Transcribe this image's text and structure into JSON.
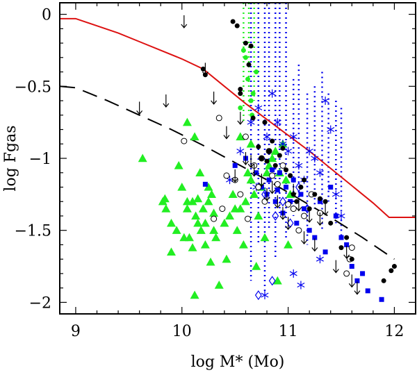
{
  "chart_data": {
    "type": "scatter",
    "xlabel": "log M* (Mo)",
    "ylabel": "log Fgas",
    "xlim": [
      8.85,
      12.2
    ],
    "ylim": [
      -2.08,
      0.08
    ],
    "x_ticks": [
      9,
      10,
      11,
      12
    ],
    "x_tick_labels": [
      "9",
      "10",
      "11",
      "12"
    ],
    "y_ticks": [
      0,
      -0.5,
      -1,
      -1.5,
      -2
    ],
    "y_tick_labels": [
      "0",
      "−0.5",
      "−1",
      "−1.5",
      "−2"
    ],
    "colors": {
      "red_curve": "#dd1111",
      "green": "#22ee22",
      "blue": "#0000ee",
      "black": "#000000"
    },
    "red_curve": {
      "x": [
        8.85,
        9.0,
        9.2,
        9.4,
        9.6,
        9.8,
        10.0,
        10.2,
        10.4,
        10.6,
        10.8,
        11.0,
        11.2,
        11.4,
        11.6,
        11.8,
        11.95,
        12.2
      ],
      "y": [
        -0.03,
        -0.03,
        -0.08,
        -0.13,
        -0.19,
        -0.25,
        -0.31,
        -0.38,
        -0.5,
        -0.62,
        -0.73,
        -0.84,
        -0.95,
        -1.07,
        -1.19,
        -1.31,
        -1.41,
        -1.41
      ]
    },
    "dashed_curve": {
      "x": [
        8.85,
        9.0,
        9.3,
        9.6,
        9.9,
        10.2,
        10.5,
        10.8,
        11.1,
        11.4,
        11.7,
        12.0
      ],
      "y": [
        -0.5,
        -0.51,
        -0.6,
        -0.7,
        -0.8,
        -0.91,
        -1.03,
        -1.15,
        -1.28,
        -1.41,
        -1.55,
        -1.7
      ]
    },
    "green_triangles": {
      "x": [
        9.63,
        9.82,
        9.84,
        9.9,
        9.97,
        10.0,
        10.05,
        10.07,
        10.1,
        10.13,
        10.15,
        10.17,
        10.2,
        10.22,
        10.25,
        10.28,
        10.3,
        10.05,
        10.12,
        10.18,
        10.22,
        10.27,
        10.32,
        10.4,
        10.45,
        10.48,
        10.52,
        10.55,
        10.6,
        10.62,
        10.65,
        10.68,
        10.72,
        10.75,
        10.8,
        10.85,
        10.88,
        10.92,
        10.95,
        10.98,
        11.02,
        10.12,
        10.35,
        10.42,
        10.58,
        10.7,
        10.78,
        10.9,
        11.0,
        10.05,
        10.15,
        10.3,
        10.5,
        10.55,
        10.65,
        10.82,
        9.95,
        10.02,
        10.1,
        9.85,
        9.9,
        10.25
      ],
      "y": [
        -1.0,
        -1.3,
        -1.28,
        -1.65,
        -1.05,
        -1.2,
        -1.35,
        -1.55,
        -1.62,
        -1.4,
        -1.28,
        -1.1,
        -1.35,
        -1.45,
        -1.3,
        -1.25,
        -1.38,
        -0.75,
        -0.85,
        -1.5,
        -1.6,
        -1.72,
        -1.55,
        -1.45,
        -1.4,
        -1.25,
        -1.5,
        -1.35,
        -1.3,
        -1.1,
        -1.15,
        -1.25,
        -1.4,
        -1.2,
        -1.1,
        -1.0,
        -0.95,
        -1.1,
        -0.9,
        -1.15,
        -1.25,
        -1.95,
        -1.88,
        -1.7,
        -1.6,
        -1.75,
        -1.55,
        -1.85,
        -1.6,
        -1.3,
        -1.45,
        -1.5,
        -1.35,
        -0.85,
        -0.9,
        -1.05,
        -1.5,
        -1.55,
        -1.3,
        -1.35,
        -1.45,
        -1.2
      ]
    },
    "green_dots": {
      "x": [
        10.6,
        10.62,
        10.65,
        10.66,
        10.67,
        10.7,
        10.55,
        10.58
      ],
      "y": [
        -0.3,
        -0.45,
        -0.6,
        -0.7,
        -0.55,
        -0.4,
        -0.65,
        -0.25
      ]
    },
    "black_dots": {
      "x": [
        10.48,
        10.52,
        10.55,
        10.6,
        10.63,
        10.67,
        10.72,
        10.75,
        10.78,
        10.82,
        10.85,
        10.88,
        10.92,
        10.95,
        10.98,
        11.02,
        11.05,
        11.08,
        11.12,
        11.15,
        11.2,
        11.25,
        11.3,
        11.35,
        11.4,
        11.5,
        11.55,
        11.6,
        11.97,
        12.0,
        11.9,
        10.2,
        10.22,
        10.55,
        10.65,
        10.8
      ],
      "y": [
        -0.05,
        -0.08,
        -0.52,
        -0.2,
        -0.35,
        -0.72,
        -0.92,
        -1.0,
        -0.75,
        -0.95,
        -0.88,
        -1.05,
        -0.98,
        -0.93,
        -1.08,
        -1.12,
        -1.25,
        -1.3,
        -1.2,
        -1.15,
        -1.35,
        -1.25,
        -1.28,
        -1.3,
        -1.45,
        -1.62,
        -1.55,
        -1.7,
        -1.78,
        -1.75,
        -1.85,
        -0.38,
        -0.42,
        -0.55,
        -0.22,
        -1.02
      ]
    },
    "open_circles": {
      "x": [
        10.02,
        10.3,
        10.35,
        10.38,
        10.42,
        10.5,
        10.55,
        10.6,
        10.62,
        10.68,
        10.72,
        10.75,
        10.78,
        10.82,
        10.85,
        10.9,
        10.95,
        11.0,
        11.05,
        11.1,
        11.15,
        11.22,
        11.3,
        11.55,
        11.58,
        11.6
      ],
      "y": [
        -0.88,
        -1.42,
        -0.72,
        -1.35,
        -1.12,
        -1.15,
        -1.25,
        -0.85,
        -1.42,
        -1.05,
        -1.2,
        -1.0,
        -1.3,
        -0.95,
        -1.12,
        -1.18,
        -1.05,
        -1.32,
        -1.35,
        -1.5,
        -1.4,
        -1.25,
        -1.38,
        -1.8,
        -1.7,
        -1.62
      ]
    },
    "blue_squares": {
      "x": [
        10.22,
        10.5,
        10.6,
        10.7,
        10.75,
        10.8,
        10.82,
        10.85,
        10.88,
        10.9,
        10.92,
        10.95,
        10.98,
        11.02,
        11.05,
        11.08,
        11.12,
        11.15,
        11.2,
        11.25,
        11.3,
        11.35,
        11.4,
        11.45,
        11.5,
        11.55,
        11.6,
        11.65,
        11.7,
        11.75,
        11.88
      ],
      "y": [
        -1.18,
        -1.05,
        -1.0,
        -1.1,
        -1.2,
        -1.25,
        -1.15,
        -1.08,
        -1.3,
        -1.22,
        -1.1,
        -1.38,
        -1.2,
        -1.3,
        -1.15,
        -1.45,
        -1.25,
        -1.35,
        -1.5,
        -1.55,
        -1.3,
        -1.65,
        -1.2,
        -1.4,
        -1.55,
        -1.6,
        -1.75,
        -1.85,
        -1.8,
        -1.92,
        -1.98
      ]
    },
    "blue_stars": {
      "x": [
        10.45,
        10.55,
        10.65,
        10.72,
        10.8,
        10.85,
        10.9,
        10.95,
        11.0,
        11.05,
        11.1,
        11.15,
        11.2,
        11.25,
        11.3,
        11.35,
        11.4,
        11.45,
        11.5,
        11.05,
        11.12,
        11.3,
        10.78,
        10.7
      ],
      "y": [
        -1.15,
        -0.95,
        -0.75,
        -0.65,
        -0.85,
        -0.55,
        -0.75,
        -0.9,
        -0.95,
        -0.85,
        -1.05,
        -1.15,
        -0.95,
        -1.0,
        -1.1,
        -0.6,
        -0.8,
        -1.25,
        -1.4,
        -1.8,
        -1.88,
        -1.7,
        -1.95,
        -1.2
      ]
    },
    "blue_diamonds": {
      "x": [
        10.78,
        10.88,
        10.95,
        11.02,
        11.1,
        11.18,
        10.72,
        10.85
      ],
      "y": [
        -1.25,
        -1.4,
        -1.3,
        -1.45,
        -1.2,
        -1.35,
        -1.95,
        -1.85
      ]
    },
    "upper_limits": {
      "x": [
        10.02,
        10.22,
        9.6,
        9.85,
        10.3,
        10.42,
        10.55,
        10.6,
        10.68,
        10.75,
        10.8,
        10.85,
        10.9,
        10.95,
        11.0,
        11.05,
        11.1,
        11.15,
        11.2,
        11.25,
        11.3,
        11.35,
        11.45,
        11.55,
        11.6,
        11.65,
        10.65,
        10.5
      ],
      "y": [
        -0.05,
        -0.38,
        -0.65,
        -0.6,
        -0.58,
        -0.82,
        -0.72,
        -1.0,
        -1.08,
        -1.15,
        -1.25,
        -1.2,
        -1.3,
        -1.38,
        -1.45,
        -1.22,
        -1.32,
        -1.55,
        -1.4,
        -1.6,
        -1.42,
        -1.35,
        -1.75,
        -1.65,
        -1.85,
        -1.9,
        -1.02,
        -1.12
      ]
    },
    "green_dotted_columns": {
      "x": [
        10.58,
        10.63,
        10.68,
        10.72
      ],
      "y_top": [
        0.08,
        0.08,
        0.08,
        0.08
      ],
      "y_bottom": [
        -0.75,
        -0.7,
        -0.6,
        -0.55
      ]
    },
    "blue_dotted_columns": {
      "x": [
        10.65,
        10.72,
        10.78,
        10.82,
        10.88,
        10.92,
        10.98,
        11.05,
        11.1,
        11.18,
        11.25,
        11.32,
        11.38,
        11.45,
        11.5
      ],
      "y_top": [
        0.08,
        0.08,
        0.08,
        0.08,
        0.08,
        0.08,
        0.08,
        -0.45,
        -0.35,
        -0.55,
        -0.5,
        -0.4,
        -0.55,
        -0.6,
        -0.65
      ],
      "y_bottom": [
        -1.85,
        -1.6,
        -1.95,
        -1.5,
        -1.7,
        -1.4,
        -1.55,
        -1.4,
        -1.3,
        -1.6,
        -1.35,
        -1.5,
        -1.3,
        -1.45,
        -1.55
      ]
    }
  }
}
